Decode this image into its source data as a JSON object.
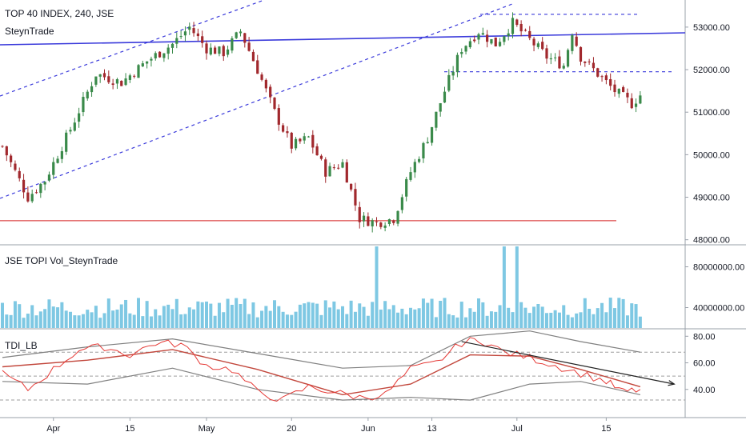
{
  "header": {
    "symbol_title": "TOP 40 INDEX, 240, JSE",
    "author": "SteynTrade"
  },
  "colors": {
    "up": "#3a8a4a",
    "down": "#a1282d",
    "volume": "#7ec8e3",
    "channel": "#3b3bdb",
    "support": "#e57373",
    "tdi_red": "#e53935",
    "tdi_band": "#808080"
  },
  "chart_data": [
    {
      "type": "candlestick",
      "title": "TOP 40 INDEX, 240, JSE",
      "y_ticks": [
        "53000.00",
        "52000.00",
        "51000.00",
        "50000.00",
        "49000.00",
        "48000.00"
      ],
      "ylim": [
        47900,
        53600
      ],
      "x_ticks": [
        "Apr",
        "15",
        "May",
        "20",
        "Jun",
        "13",
        "Jul",
        "15"
      ],
      "close_path": [
        [
          0,
          50200
        ],
        [
          6,
          49000
        ],
        [
          10,
          49400
        ],
        [
          16,
          50600
        ],
        [
          22,
          51900
        ],
        [
          28,
          51700
        ],
        [
          34,
          52200
        ],
        [
          40,
          52600
        ],
        [
          44,
          53000
        ],
        [
          48,
          52500
        ],
        [
          52,
          52400
        ],
        [
          56,
          52900
        ],
        [
          60,
          52000
        ],
        [
          64,
          51000
        ],
        [
          68,
          50200
        ],
        [
          72,
          50400
        ],
        [
          76,
          49600
        ],
        [
          80,
          49800
        ],
        [
          84,
          48500
        ],
        [
          88,
          48400
        ],
        [
          92,
          48500
        ],
        [
          96,
          49600
        ],
        [
          100,
          50400
        ],
        [
          104,
          51500
        ],
        [
          108,
          52500
        ],
        [
          112,
          52900
        ],
        [
          116,
          52600
        ],
        [
          120,
          53100
        ],
        [
          122,
          52900
        ],
        [
          124,
          52700
        ],
        [
          128,
          52300
        ],
        [
          132,
          52100
        ],
        [
          134,
          52900
        ],
        [
          136,
          52300
        ],
        [
          140,
          51900
        ],
        [
          144,
          51500
        ],
        [
          148,
          51200
        ],
        [
          150,
          51400
        ]
      ],
      "horizontal_lines": [
        48450,
        53300,
        51950
      ],
      "channel_lines": [
        "ascending-upper",
        "ascending-lower",
        "ascending-middle",
        "resistance-trendline"
      ]
    },
    {
      "type": "bar",
      "title": "JSE TOPI Vol_SteynTrade",
      "y_ticks": [
        "80000000.00",
        "40000000.00"
      ],
      "ylim": [
        20000000,
        100000000
      ],
      "spikes": [
        {
          "x": 88,
          "value": 100000000
        },
        {
          "x": 118,
          "value": 100000000
        },
        {
          "x": 121,
          "value": 100000000
        }
      ],
      "baseline_range": [
        30000000,
        50000000
      ]
    },
    {
      "type": "line",
      "title": "TDI_LB",
      "y_ticks": [
        "80.00",
        "60.00",
        "40.00"
      ],
      "ylim": [
        20,
        85
      ],
      "levels": [
        68,
        50,
        32
      ],
      "rsi": [
        [
          0,
          52
        ],
        [
          6,
          40
        ],
        [
          12,
          55
        ],
        [
          18,
          70
        ],
        [
          24,
          72
        ],
        [
          30,
          66
        ],
        [
          36,
          75
        ],
        [
          42,
          74
        ],
        [
          48,
          58
        ],
        [
          54,
          55
        ],
        [
          60,
          38
        ],
        [
          66,
          32
        ],
        [
          72,
          42
        ],
        [
          78,
          38
        ],
        [
          84,
          34
        ],
        [
          90,
          36
        ],
        [
          96,
          55
        ],
        [
          102,
          60
        ],
        [
          108,
          75
        ],
        [
          112,
          78
        ],
        [
          118,
          68
        ],
        [
          124,
          64
        ],
        [
          130,
          58
        ],
        [
          136,
          52
        ],
        [
          142,
          46
        ],
        [
          146,
          38
        ],
        [
          150,
          40
        ]
      ],
      "signal": [
        [
          0,
          57
        ],
        [
          20,
          62
        ],
        [
          40,
          70
        ],
        [
          60,
          55
        ],
        [
          80,
          36
        ],
        [
          96,
          44
        ],
        [
          110,
          66
        ],
        [
          124,
          65
        ],
        [
          136,
          55
        ],
        [
          150,
          42
        ]
      ],
      "upper_band": [
        [
          0,
          64
        ],
        [
          20,
          72
        ],
        [
          40,
          78
        ],
        [
          60,
          67
        ],
        [
          80,
          56
        ],
        [
          96,
          58
        ],
        [
          110,
          80
        ],
        [
          124,
          84
        ],
        [
          136,
          76
        ],
        [
          150,
          68
        ]
      ],
      "lower_band": [
        [
          0,
          46
        ],
        [
          20,
          44
        ],
        [
          40,
          56
        ],
        [
          60,
          40
        ],
        [
          80,
          32
        ],
        [
          96,
          34
        ],
        [
          110,
          32
        ],
        [
          124,
          44
        ],
        [
          136,
          46
        ],
        [
          150,
          36
        ]
      ],
      "trendline": [
        [
          108,
          76
        ],
        [
          158,
          44
        ]
      ]
    }
  ]
}
